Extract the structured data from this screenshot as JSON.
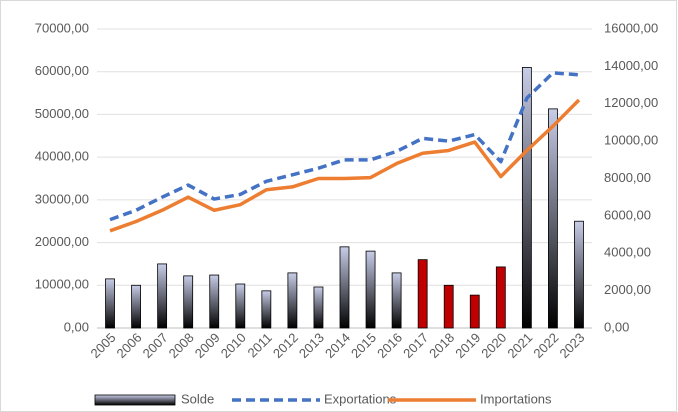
{
  "chart_data": {
    "type": "bar-line",
    "categories": [
      "2005",
      "2006",
      "2007",
      "2008",
      "2009",
      "2010",
      "2011",
      "2012",
      "2013",
      "2014",
      "2015",
      "2016",
      "2017",
      "2018",
      "2019",
      "2020",
      "2021",
      "2022",
      "2023"
    ],
    "series": [
      {
        "name": "Solde",
        "type": "bar",
        "axis": "y",
        "colors": [
          "#c8cde8",
          "#c8cde8",
          "#c8cde8",
          "#c8cde8",
          "#c8cde8",
          "#c8cde8",
          "#c8cde8",
          "#c8cde8",
          "#c8cde8",
          "#c8cde8",
          "#c8cde8",
          "#c8cde8",
          "#c00000",
          "#c00000",
          "#c00000",
          "#c00000",
          "#c8cde8",
          "#c8cde8",
          "#c8cde8"
        ],
        "values": [
          11500,
          10000,
          15000,
          12200,
          12400,
          10300,
          8700,
          12900,
          9600,
          19000,
          18000,
          12900,
          16000,
          10000,
          7700,
          14300,
          61000,
          51300,
          25000
        ]
      },
      {
        "name": "Exportations",
        "type": "line",
        "axis": "y2",
        "color": "#4472c4",
        "dashed": true,
        "values": [
          5800,
          6300,
          7000,
          7650,
          6900,
          7150,
          7850,
          8200,
          8550,
          9000,
          9000,
          9450,
          10150,
          10000,
          10350,
          8900,
          12300,
          13650,
          13550
        ]
      },
      {
        "name": "Importations",
        "type": "line",
        "axis": "y2",
        "color": "#ed7d31",
        "dashed": false,
        "values": [
          5200,
          5700,
          6300,
          7000,
          6300,
          6600,
          7400,
          7550,
          8000,
          8000,
          8050,
          8800,
          9350,
          9500,
          9950,
          8100,
          9500,
          10800,
          12200
        ]
      }
    ],
    "ylim": [
      0,
      70000
    ],
    "yticks": [
      {
        "value": 0,
        "label": "0,00"
      },
      {
        "value": 10000,
        "label": "10000,00"
      },
      {
        "value": 20000,
        "label": "20000,00"
      },
      {
        "value": 30000,
        "label": "30000,00"
      },
      {
        "value": 40000,
        "label": "40000,00"
      },
      {
        "value": 50000,
        "label": "50000,00"
      },
      {
        "value": 60000,
        "label": "60000,00"
      },
      {
        "value": 70000,
        "label": "70000,00"
      }
    ],
    "y2lim": [
      0,
      16000
    ],
    "y2ticks": [
      {
        "value": 0,
        "label": "0,00"
      },
      {
        "value": 2000,
        "label": "2000,00"
      },
      {
        "value": 4000,
        "label": "4000,00"
      },
      {
        "value": 6000,
        "label": "6000,00"
      },
      {
        "value": 8000,
        "label": "8000,00"
      },
      {
        "value": 10000,
        "label": "10000,00"
      },
      {
        "value": 12000,
        "label": "12000,00"
      },
      {
        "value": 14000,
        "label": "14000,00"
      },
      {
        "value": 16000,
        "label": "16000,00"
      }
    ],
    "grid": true,
    "legend": "bottom"
  }
}
